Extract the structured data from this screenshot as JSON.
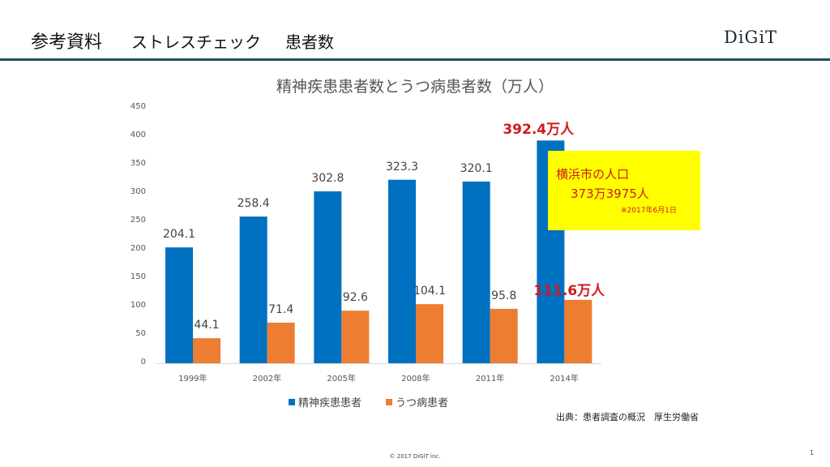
{
  "header": {
    "title": "参考資料",
    "subtitle": "ストレスチェック",
    "subtitle2": "患者数",
    "logo": "DiGiT"
  },
  "chart_data": {
    "type": "bar",
    "title": "精神疾患患者数とうつ病患者数（万人）",
    "categories": [
      "1999年",
      "2002年",
      "2005年",
      "2008年",
      "2011年",
      "2014年"
    ],
    "ylim": [
      0,
      450
    ],
    "yticks": [
      "0",
      "50",
      "100",
      "150",
      "200",
      "250",
      "300",
      "350",
      "400",
      "450"
    ],
    "grid": false,
    "legend_position": "bottom",
    "series": [
      {
        "name": "精神疾患患者",
        "color": "#0070c0",
        "values": [
          204.1,
          258.4,
          302.8,
          323.3,
          320.1,
          392.4
        ],
        "labels": [
          "204.1",
          "258.4",
          "302.8",
          "323.3",
          "320.1",
          "392.4万人"
        ]
      },
      {
        "name": "うつ病患者",
        "color": "#ed7d31",
        "values": [
          44.1,
          71.4,
          92.6,
          104.1,
          95.8,
          111.6
        ],
        "labels": [
          "44.1",
          "71.4",
          "92.6",
          "104.1",
          "95.8",
          "111.6万人"
        ]
      }
    ]
  },
  "callout": {
    "line1": "横浜市の人口",
    "line2": "373万3975人",
    "note": "※2017年6月1日",
    "background": "#ffff00",
    "text_color": "#d01a1a"
  },
  "source": "出典：患者調査の概況　厚生労働省",
  "footer": "© 2017  DiGiT inc.",
  "page_number": "1"
}
